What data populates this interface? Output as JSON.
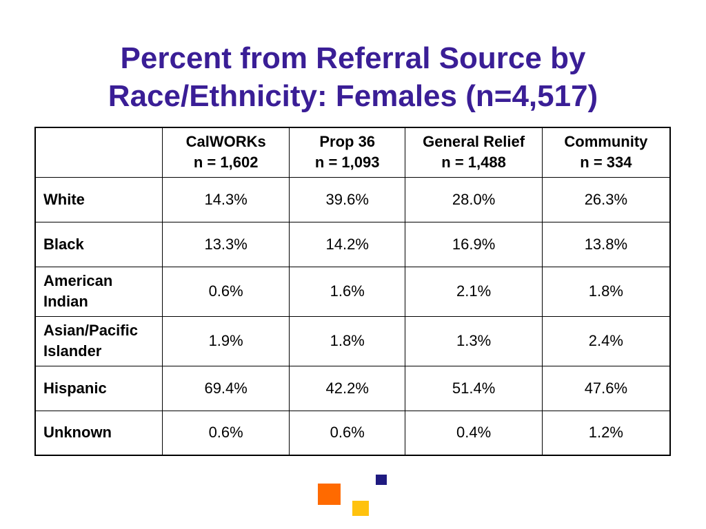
{
  "slide": {
    "title_line1": "Percent from Referral Source by",
    "title_line2": "Race/Ethnicity: Females (n=4,517)"
  },
  "table": {
    "corner": "",
    "columns": [
      {
        "name": "CalWORKs",
        "n": "n = 1,602"
      },
      {
        "name": "Prop 36",
        "n": "n = 1,093"
      },
      {
        "name": "General Relief",
        "n": "n = 1,488"
      },
      {
        "name": "Community",
        "n": "n = 334"
      }
    ],
    "rows": [
      {
        "label_lines": [
          "White"
        ],
        "values": [
          "14.3%",
          "39.6%",
          "28.0%",
          "26.3%"
        ]
      },
      {
        "label_lines": [
          "Black"
        ],
        "values": [
          "13.3%",
          "14.2%",
          "16.9%",
          "13.8%"
        ]
      },
      {
        "label_lines": [
          "American",
          "Indian"
        ],
        "values": [
          "0.6%",
          "1.6%",
          "2.1%",
          "1.8%"
        ]
      },
      {
        "label_lines": [
          "Asian/Pacific",
          "Islander"
        ],
        "values": [
          "1.9%",
          "1.8%",
          "1.3%",
          "2.4%"
        ]
      },
      {
        "label_lines": [
          "Hispanic"
        ],
        "values": [
          "69.4%",
          "42.2%",
          "51.4%",
          "47.6%"
        ]
      },
      {
        "label_lines": [
          "Unknown"
        ],
        "values": [
          "0.6%",
          "0.6%",
          "0.4%",
          "1.2%"
        ]
      }
    ]
  },
  "decoration": {
    "colors": {
      "title": "#3a1e96",
      "orange": "#ff6a00",
      "yellow": "#ffc20e",
      "navy": "#1f1a80"
    }
  }
}
